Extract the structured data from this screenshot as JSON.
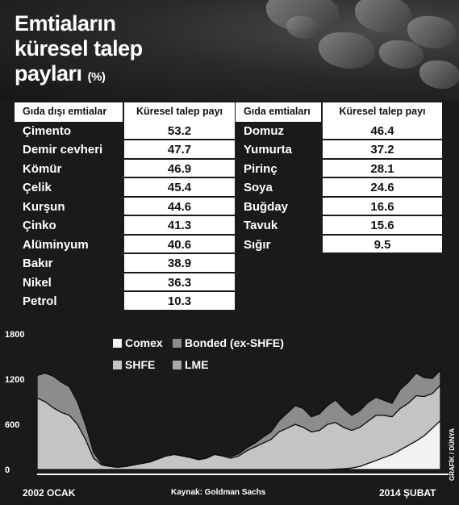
{
  "title": {
    "line1": "Emtiaların",
    "line2": "küresel talep",
    "line3": "payları",
    "unit": "(%)"
  },
  "tables": {
    "non_food": {
      "header_name": "Gıda dışı emtialar",
      "header_value": "Küresel talep payı",
      "rows": [
        {
          "name": "Çimento",
          "value": "53.2"
        },
        {
          "name": "Demir cevheri",
          "value": "47.7"
        },
        {
          "name": "Kömür",
          "value": "46.9"
        },
        {
          "name": "Çelik",
          "value": "45.4"
        },
        {
          "name": "Kurşun",
          "value": "44.6"
        },
        {
          "name": "Çinko",
          "value": "41.3"
        },
        {
          "name": "Alüminyum",
          "value": "40.6"
        },
        {
          "name": "Bakır",
          "value": "38.9"
        },
        {
          "name": "Nikel",
          "value": "36.3"
        },
        {
          "name": "Petrol",
          "value": "10.3"
        }
      ]
    },
    "food": {
      "header_name": "Gıda emtiaları",
      "header_value": "Küresel talep payı",
      "rows": [
        {
          "name": "Domuz",
          "value": "46.4"
        },
        {
          "name": "Yumurta",
          "value": "37.2"
        },
        {
          "name": "Pirinç",
          "value": "28.1"
        },
        {
          "name": "Soya",
          "value": "24.6"
        },
        {
          "name": "Buğday",
          "value": "16.6"
        },
        {
          "name": "Tavuk",
          "value": "15.6"
        },
        {
          "name": "Sığır",
          "value": "9.5"
        }
      ]
    }
  },
  "chart_data": {
    "type": "area",
    "title": "",
    "xlabel": "",
    "ylabel": "",
    "ylim": [
      0,
      1800
    ],
    "yticks": [
      "0",
      "600",
      "1200",
      "1800"
    ],
    "x_start_label": "2002 OCAK",
    "x_end_label": "2014 ŞUBAT",
    "grid": false,
    "legend_position": "top-center",
    "x": [
      0,
      2,
      4,
      6,
      8,
      10,
      12,
      14,
      16,
      18,
      20,
      22,
      24,
      26,
      28,
      30,
      32,
      34,
      36,
      38,
      40,
      42,
      44,
      46,
      48,
      50,
      52,
      54,
      56,
      58,
      60,
      62,
      64,
      66,
      68,
      70,
      72,
      74,
      76,
      78,
      80,
      82,
      84,
      86,
      88,
      90,
      92,
      94,
      96,
      98,
      100
    ],
    "series": [
      {
        "name": "Comex",
        "color": "#f2f2f2",
        "values": [
          0,
          0,
          0,
          0,
          0,
          0,
          0,
          0,
          0,
          0,
          0,
          0,
          0,
          0,
          0,
          0,
          0,
          0,
          0,
          0,
          0,
          0,
          0,
          0,
          0,
          0,
          0,
          0,
          0,
          0,
          0,
          0,
          0,
          0,
          0,
          0,
          0,
          5,
          10,
          20,
          40,
          80,
          120,
          160,
          200,
          260,
          320,
          380,
          450,
          550,
          650
        ]
      },
      {
        "name": "Bonded (ex-SHFE)",
        "color": "#8c8c8c",
        "values": [
          300,
          380,
          420,
          400,
          380,
          300,
          200,
          80,
          20,
          10,
          5,
          5,
          5,
          5,
          5,
          5,
          5,
          5,
          5,
          5,
          5,
          5,
          5,
          10,
          20,
          30,
          40,
          50,
          80,
          100,
          150,
          200,
          250,
          250,
          200,
          220,
          250,
          300,
          250,
          200,
          220,
          250,
          240,
          200,
          180,
          250,
          280,
          300,
          250,
          200,
          200
        ]
      },
      {
        "name": "SHFE",
        "color": "#c4c4c4",
        "values": [
          950,
          900,
          820,
          760,
          720,
          600,
          400,
          150,
          60,
          40,
          30,
          40,
          60,
          80,
          100,
          140,
          180,
          200,
          180,
          160,
          130,
          150,
          200,
          180,
          150,
          180,
          250,
          300,
          350,
          400,
          500,
          550,
          600,
          560,
          500,
          520,
          600,
          620,
          550,
          500,
          520,
          560,
          600,
          560,
          500,
          550,
          560,
          600,
          520,
          460,
          470
        ]
      },
      {
        "name": "LME",
        "color": "#a8a8a8",
        "values": [
          0,
          0,
          0,
          0,
          0,
          0,
          0,
          0,
          0,
          0,
          0,
          0,
          0,
          0,
          0,
          0,
          0,
          0,
          0,
          0,
          0,
          0,
          0,
          0,
          0,
          0,
          0,
          0,
          0,
          0,
          0,
          0,
          0,
          0,
          0,
          0,
          0,
          0,
          0,
          0,
          0,
          0,
          0,
          0,
          0,
          0,
          0,
          0,
          0,
          0,
          0
        ]
      }
    ]
  },
  "source": "Kaynak: Goldman Sachs",
  "credit": "GRAFİK / DÜNYA"
}
